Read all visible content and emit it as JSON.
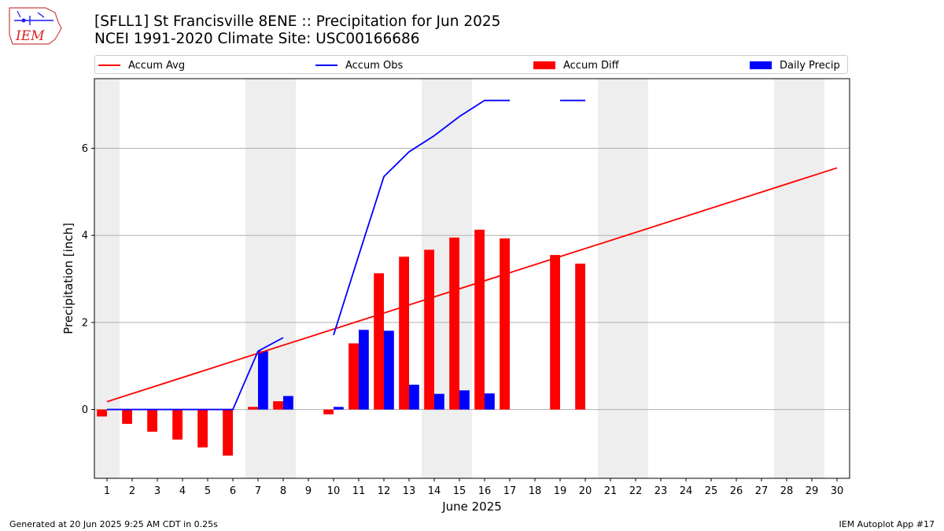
{
  "header": {
    "title_line1": "[SFLL1] St Francisville 8ENE :: Precipitation for Jun 2025",
    "title_line2": "NCEI 1991-2020 Climate Site: USC00166686",
    "logo_text": "IEM"
  },
  "legend": {
    "items": [
      {
        "label": "Accum Avg",
        "kind": "line",
        "color": "#ff0000"
      },
      {
        "label": "Accum Obs",
        "kind": "line",
        "color": "#0000ff"
      },
      {
        "label": "Accum Diff",
        "kind": "box",
        "color": "#ff0000"
      },
      {
        "label": "Daily Precip",
        "kind": "box",
        "color": "#0000ff"
      }
    ]
  },
  "footer": {
    "left": "Generated at 20 Jun 2025 9:25 AM CDT in 0.25s",
    "right": "IEM Autoplot App #17"
  },
  "chart_data": {
    "type": "bar",
    "xlabel": "June 2025",
    "ylabel": "Precipitation [inch]",
    "ylim": [
      -1.58,
      7.6
    ],
    "xlim": [
      0.5,
      30.5
    ],
    "yticks": [
      0,
      2,
      4,
      6
    ],
    "categories": [
      1,
      2,
      3,
      4,
      5,
      6,
      7,
      8,
      9,
      10,
      11,
      12,
      13,
      14,
      15,
      16,
      17,
      18,
      19,
      20,
      21,
      22,
      23,
      24,
      25,
      26,
      27,
      28,
      29,
      30
    ],
    "weekend_days": [
      1,
      7,
      8,
      14,
      15,
      21,
      22,
      28,
      29
    ],
    "grid": "horizontal",
    "legend_position": "top",
    "series": [
      {
        "name": "Accum Avg",
        "kind": "line",
        "color": "#ff0000",
        "x": [
          1,
          30
        ],
        "values": [
          0.18,
          5.55
        ]
      },
      {
        "name": "Accum Obs",
        "kind": "line",
        "color": "#0000ff",
        "segments": [
          {
            "x": [
              1,
              2,
              3,
              4,
              5,
              6,
              7,
              8
            ],
            "values": [
              0,
              0,
              0,
              0,
              0,
              0,
              1.34,
              1.65
            ]
          },
          {
            "x": [
              10,
              11,
              12,
              13,
              14,
              15,
              16,
              17
            ],
            "values": [
              1.71,
              3.54,
              5.35,
              5.92,
              6.29,
              6.73,
              7.1,
              7.1
            ]
          },
          {
            "x": [
              19,
              20
            ],
            "values": [
              7.1,
              7.1
            ]
          }
        ]
      },
      {
        "name": "Accum Diff",
        "kind": "bar",
        "color": "#ff0000",
        "x": [
          1,
          2,
          3,
          4,
          5,
          6,
          7,
          8,
          10,
          11,
          12,
          13,
          14,
          15,
          16,
          17,
          19,
          20
        ],
        "values": [
          -0.16,
          -0.33,
          -0.51,
          -0.69,
          -0.87,
          -1.06,
          0.06,
          0.19,
          -0.11,
          1.52,
          3.13,
          3.51,
          3.67,
          3.95,
          4.13,
          3.93,
          3.55,
          3.35
        ]
      },
      {
        "name": "Daily Precip",
        "kind": "bar",
        "color": "#0000ff",
        "x": [
          7,
          8,
          10,
          11,
          12,
          13,
          14,
          15,
          16
        ],
        "values": [
          1.34,
          0.31,
          0.06,
          1.83,
          1.81,
          0.57,
          0.36,
          0.44,
          0.37
        ]
      }
    ]
  }
}
